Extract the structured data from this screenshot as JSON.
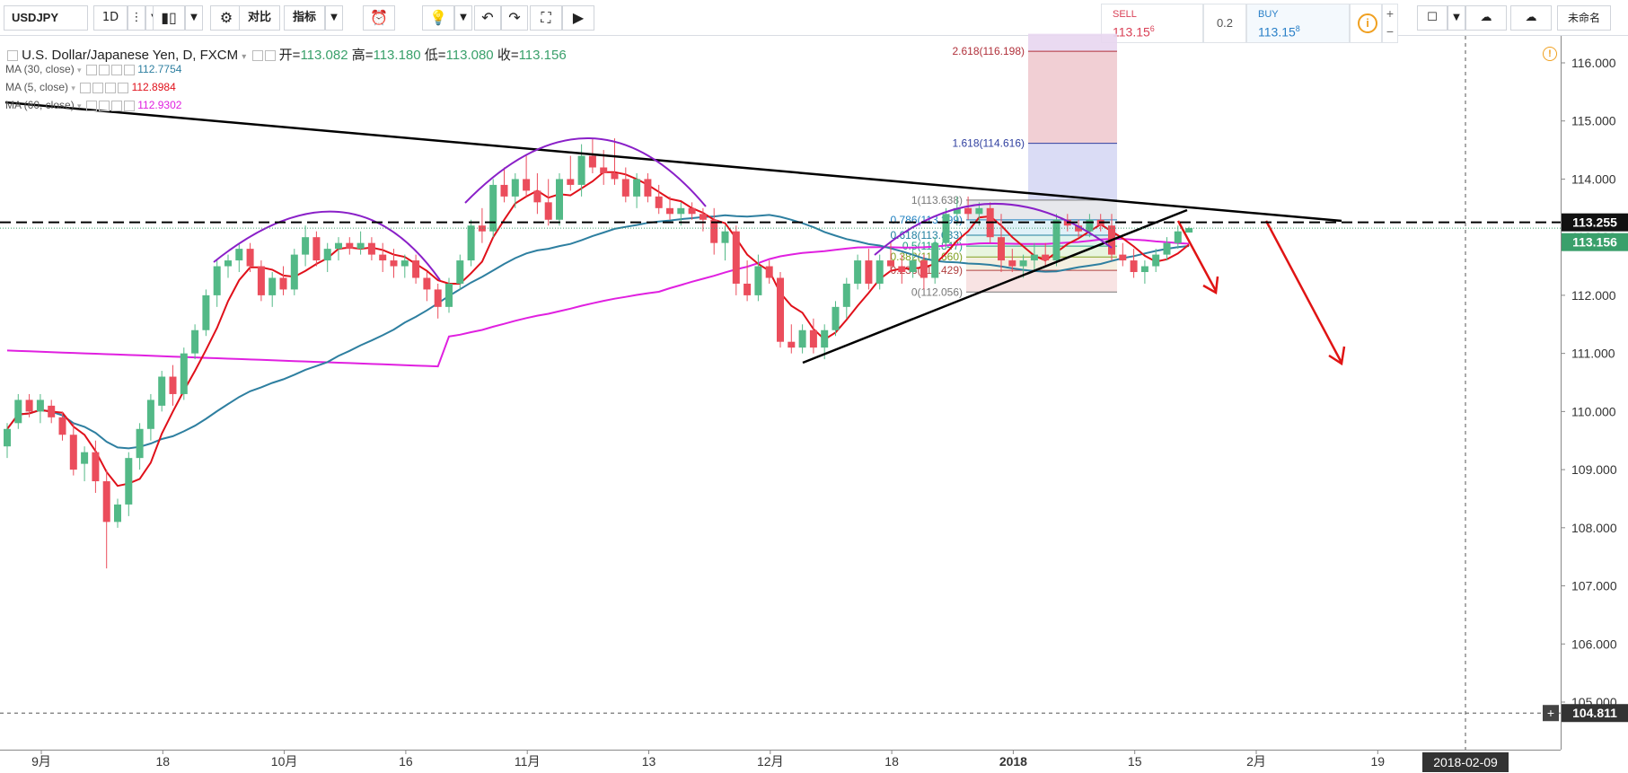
{
  "toolbar": {
    "symbol": "USDJPY",
    "interval": "1D",
    "compare_label": "对比",
    "indicators_label": "指标",
    "layout_name": "未命名"
  },
  "trade": {
    "sell_label": "SELL",
    "sell_price": "113.15",
    "sell_price_sup": "6",
    "spread": "0.2",
    "buy_label": "BUY",
    "buy_price": "113.15",
    "buy_price_sup": "8"
  },
  "legend": {
    "title": "U.S. Dollar/Japanese Yen, D, FXCM",
    "open_label": "开=",
    "open": "113.082",
    "high_label": "高=",
    "high": "113.180",
    "low_label": "低=",
    "low": "113.080",
    "close_label": "收=",
    "close": "113.156",
    "ma30_label": "MA (30, close)",
    "ma30_value": "112.7754",
    "ma5_label": "MA (5, close)",
    "ma5_value": "112.8984",
    "ma60_label": "MA (60, close)",
    "ma60_value": "112.9302"
  },
  "colors": {
    "up": "#53b987",
    "down": "#eb4d5c",
    "ma30": "#2e7fa0",
    "ma5": "#e0101a",
    "ma60": "#e020e0",
    "arc": "#8a20c8",
    "trend": "#000000",
    "arrow": "#e01414",
    "price_badge": "#3aa06b"
  },
  "chart_data": {
    "type": "candlestick",
    "yrange": [
      104.2,
      116.5
    ],
    "ytick_labels": [
      "116.000",
      "115.000",
      "114.000",
      "113.000",
      "112.000",
      "111.000",
      "110.000",
      "109.000",
      "108.000",
      "107.000",
      "106.000",
      "105.000"
    ],
    "yticks": [
      116,
      115,
      114,
      113,
      112,
      111,
      110,
      109,
      108,
      107,
      106,
      105
    ],
    "xtick_labels": [
      "9月",
      "18",
      "10月",
      "16",
      "11月",
      "13",
      "12月",
      "18",
      "2018",
      "15",
      "2月",
      "19"
    ],
    "xtick_index": [
      0,
      11,
      22,
      33,
      44,
      55,
      66,
      77,
      88,
      99,
      110,
      121
    ],
    "date_badge": "2018-02-09",
    "price_badge": "113.156",
    "hline_badge": "113.255",
    "crosshair_badge": "104.811",
    "dashed_level": 113.255,
    "crosshair_level": 104.811,
    "candles": [
      [
        109.4,
        109.8,
        109.2,
        109.7
      ],
      [
        109.8,
        110.3,
        109.7,
        110.2
      ],
      [
        110.2,
        110.3,
        109.9,
        110.0
      ],
      [
        110.0,
        110.3,
        109.8,
        110.2
      ],
      [
        110.1,
        110.2,
        109.8,
        109.9
      ],
      [
        109.9,
        110.0,
        109.5,
        109.6
      ],
      [
        109.6,
        109.8,
        108.9,
        109.0
      ],
      [
        109.1,
        109.4,
        108.8,
        109.3
      ],
      [
        109.3,
        109.5,
        108.6,
        108.8
      ],
      [
        108.8,
        109.0,
        107.3,
        108.1
      ],
      [
        108.1,
        108.5,
        108.0,
        108.4
      ],
      [
        108.4,
        109.3,
        108.2,
        109.2
      ],
      [
        109.2,
        109.8,
        109.0,
        109.7
      ],
      [
        109.7,
        110.3,
        109.5,
        110.2
      ],
      [
        110.1,
        110.7,
        110.0,
        110.6
      ],
      [
        110.6,
        110.8,
        110.1,
        110.3
      ],
      [
        110.3,
        111.1,
        110.2,
        111.0
      ],
      [
        111.0,
        111.5,
        110.9,
        111.4
      ],
      [
        111.4,
        112.1,
        111.3,
        112.0
      ],
      [
        112.0,
        112.6,
        111.8,
        112.5
      ],
      [
        112.5,
        112.7,
        112.3,
        112.6
      ],
      [
        112.6,
        112.9,
        112.4,
        112.8
      ],
      [
        112.8,
        112.9,
        112.4,
        112.5
      ],
      [
        112.5,
        112.6,
        111.9,
        112.0
      ],
      [
        112.0,
        112.4,
        111.8,
        112.3
      ],
      [
        112.3,
        112.5,
        112.0,
        112.1
      ],
      [
        112.1,
        112.8,
        112.0,
        112.7
      ],
      [
        112.7,
        113.2,
        112.5,
        113.0
      ],
      [
        113.0,
        113.1,
        112.5,
        112.6
      ],
      [
        112.6,
        112.9,
        112.4,
        112.8
      ],
      [
        112.8,
        113.0,
        112.6,
        112.9
      ],
      [
        112.9,
        113.0,
        112.7,
        112.8
      ],
      [
        112.8,
        113.1,
        112.7,
        112.9
      ],
      [
        112.9,
        113.0,
        112.6,
        112.7
      ],
      [
        112.7,
        112.9,
        112.4,
        112.6
      ],
      [
        112.6,
        112.8,
        112.3,
        112.5
      ],
      [
        112.5,
        112.7,
        112.3,
        112.6
      ],
      [
        112.6,
        112.7,
        112.2,
        112.3
      ],
      [
        112.3,
        112.4,
        111.9,
        112.1
      ],
      [
        112.1,
        112.2,
        111.6,
        111.8
      ],
      [
        111.8,
        112.3,
        111.7,
        112.2
      ],
      [
        112.2,
        112.7,
        112.1,
        112.6
      ],
      [
        112.6,
        113.3,
        112.5,
        113.2
      ],
      [
        113.2,
        113.5,
        112.9,
        113.1
      ],
      [
        113.1,
        114.0,
        113.0,
        113.9
      ],
      [
        113.9,
        114.2,
        113.6,
        113.7
      ],
      [
        113.7,
        114.1,
        113.5,
        114.0
      ],
      [
        114.0,
        114.4,
        113.7,
        113.8
      ],
      [
        113.8,
        114.1,
        113.4,
        113.6
      ],
      [
        113.6,
        114.0,
        113.2,
        113.3
      ],
      [
        113.3,
        114.1,
        113.2,
        114.0
      ],
      [
        114.0,
        114.4,
        113.8,
        113.9
      ],
      [
        113.9,
        114.6,
        113.7,
        114.4
      ],
      [
        114.4,
        114.7,
        114.1,
        114.2
      ],
      [
        114.2,
        114.5,
        113.9,
        114.1
      ],
      [
        114.1,
        114.7,
        113.9,
        114.0
      ],
      [
        114.0,
        114.2,
        113.6,
        113.7
      ],
      [
        113.7,
        114.1,
        113.5,
        114.0
      ],
      [
        114.0,
        114.1,
        113.6,
        113.7
      ],
      [
        113.7,
        113.9,
        113.4,
        113.5
      ],
      [
        113.5,
        113.7,
        113.3,
        113.4
      ],
      [
        113.4,
        113.6,
        113.2,
        113.5
      ],
      [
        113.5,
        113.6,
        113.3,
        113.4
      ],
      [
        113.4,
        113.5,
        113.1,
        113.3
      ],
      [
        113.3,
        113.5,
        112.7,
        112.9
      ],
      [
        112.9,
        113.2,
        112.6,
        113.1
      ],
      [
        113.1,
        113.2,
        112.0,
        112.2
      ],
      [
        112.2,
        112.6,
        111.9,
        112.0
      ],
      [
        112.0,
        112.7,
        111.9,
        112.5
      ],
      [
        112.5,
        112.6,
        112.2,
        112.3
      ],
      [
        112.3,
        112.4,
        111.1,
        111.2
      ],
      [
        111.2,
        111.5,
        111.0,
        111.1
      ],
      [
        111.1,
        111.5,
        111.0,
        111.4
      ],
      [
        111.4,
        111.6,
        111.0,
        111.1
      ],
      [
        111.1,
        111.5,
        110.9,
        111.4
      ],
      [
        111.4,
        111.9,
        111.3,
        111.8
      ],
      [
        111.8,
        112.3,
        111.6,
        112.2
      ],
      [
        112.2,
        112.7,
        112.1,
        112.6
      ],
      [
        112.6,
        112.8,
        112.1,
        112.2
      ],
      [
        112.2,
        112.7,
        112.1,
        112.6
      ],
      [
        112.6,
        112.9,
        112.4,
        112.5
      ],
      [
        112.5,
        112.7,
        112.2,
        112.4
      ],
      [
        112.4,
        112.8,
        112.3,
        112.6
      ],
      [
        112.6,
        112.7,
        112.1,
        112.3
      ],
      [
        112.3,
        113.0,
        112.2,
        112.9
      ],
      [
        112.9,
        113.5,
        112.8,
        113.4
      ],
      [
        113.4,
        113.7,
        113.2,
        113.5
      ],
      [
        113.5,
        113.7,
        113.3,
        113.4
      ],
      [
        113.4,
        113.6,
        113.2,
        113.5
      ],
      [
        113.5,
        113.6,
        112.9,
        113.0
      ],
      [
        113.0,
        113.4,
        112.4,
        112.6
      ],
      [
        112.6,
        112.8,
        112.4,
        112.5
      ],
      [
        112.5,
        112.7,
        112.3,
        112.6
      ],
      [
        112.6,
        112.9,
        112.4,
        112.7
      ],
      [
        112.7,
        112.9,
        112.5,
        112.6
      ],
      [
        112.6,
        113.4,
        112.5,
        113.3
      ],
      [
        113.3,
        113.4,
        113.1,
        113.2
      ],
      [
        113.2,
        113.3,
        113.0,
        113.1
      ],
      [
        113.1,
        113.4,
        113.0,
        113.3
      ],
      [
        113.3,
        113.4,
        113.1,
        113.2
      ],
      [
        113.2,
        113.4,
        112.6,
        112.7
      ],
      [
        112.7,
        112.9,
        112.5,
        112.6
      ],
      [
        112.6,
        112.8,
        112.3,
        112.4
      ],
      [
        112.4,
        112.6,
        112.2,
        112.5
      ],
      [
        112.5,
        112.8,
        112.4,
        112.7
      ],
      [
        112.7,
        113.0,
        112.6,
        112.9
      ],
      [
        112.9,
        113.2,
        112.8,
        113.1
      ],
      [
        113.08,
        113.18,
        113.08,
        113.156
      ]
    ],
    "fib_levels": [
      {
        "label": "2.618(116.198)",
        "value": 116.198,
        "color": "#b0303a"
      },
      {
        "label": "1.618(114.616)",
        "value": 114.616,
        "color": "#3040a0"
      },
      {
        "label": "1(113.638)",
        "value": 113.638,
        "color": "#777777"
      },
      {
        "label": "0.786(113.299)",
        "value": 113.299,
        "color": "#2080c0"
      },
      {
        "label": "0.618(113.033)",
        "value": 113.033,
        "color": "#2080a0"
      },
      {
        "label": "0.5(112.847)",
        "value": 112.847,
        "color": "#20a080"
      },
      {
        "label": "0.382(112.660)",
        "value": 112.66,
        "color": "#80a020"
      },
      {
        "label": "0.236(112.429)",
        "value": 112.429,
        "color": "#b04040"
      },
      {
        "label": "0(112.056)",
        "value": 112.056,
        "color": "#777777"
      }
    ]
  }
}
